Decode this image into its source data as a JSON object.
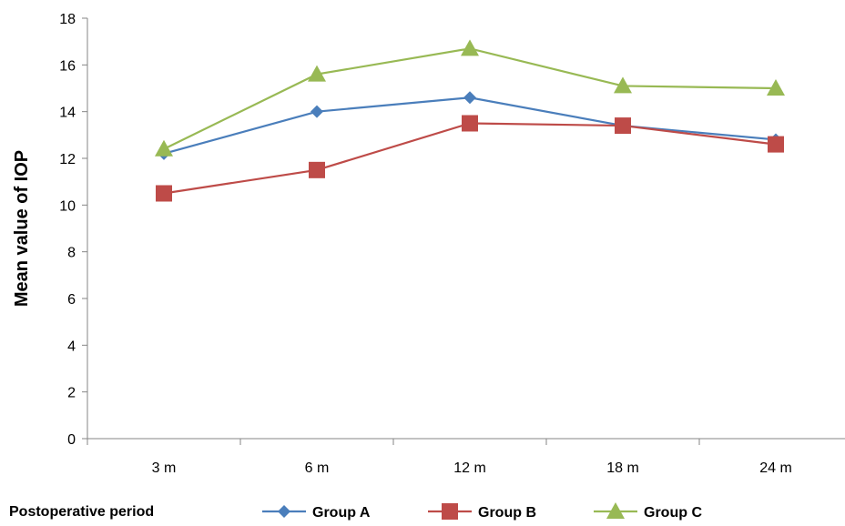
{
  "chart_data": {
    "type": "line",
    "categories": [
      "3 m",
      "6 m",
      "12 m",
      "18 m",
      "24 m"
    ],
    "ylabel": "Mean value of IOP",
    "xlabel": "Postoperative period",
    "ylim": [
      0,
      18
    ],
    "yticks": [
      "0",
      "2",
      "4",
      "6",
      "8",
      "10",
      "12",
      "14",
      "16",
      "18"
    ],
    "grid": false,
    "legend_position": "bottom",
    "series": [
      {
        "name": "Group A",
        "values": [
          12.2,
          14.0,
          14.6,
          13.4,
          12.8
        ],
        "color": "#4a7ebb",
        "marker": "diamond"
      },
      {
        "name": "Group B",
        "values": [
          10.5,
          11.5,
          13.5,
          13.4,
          12.6
        ],
        "color": "#be4b48",
        "marker": "square"
      },
      {
        "name": "Group C",
        "values": [
          12.4,
          15.6,
          16.7,
          15.1,
          15.0
        ],
        "color": "#98b954",
        "marker": "triangle"
      }
    ]
  }
}
